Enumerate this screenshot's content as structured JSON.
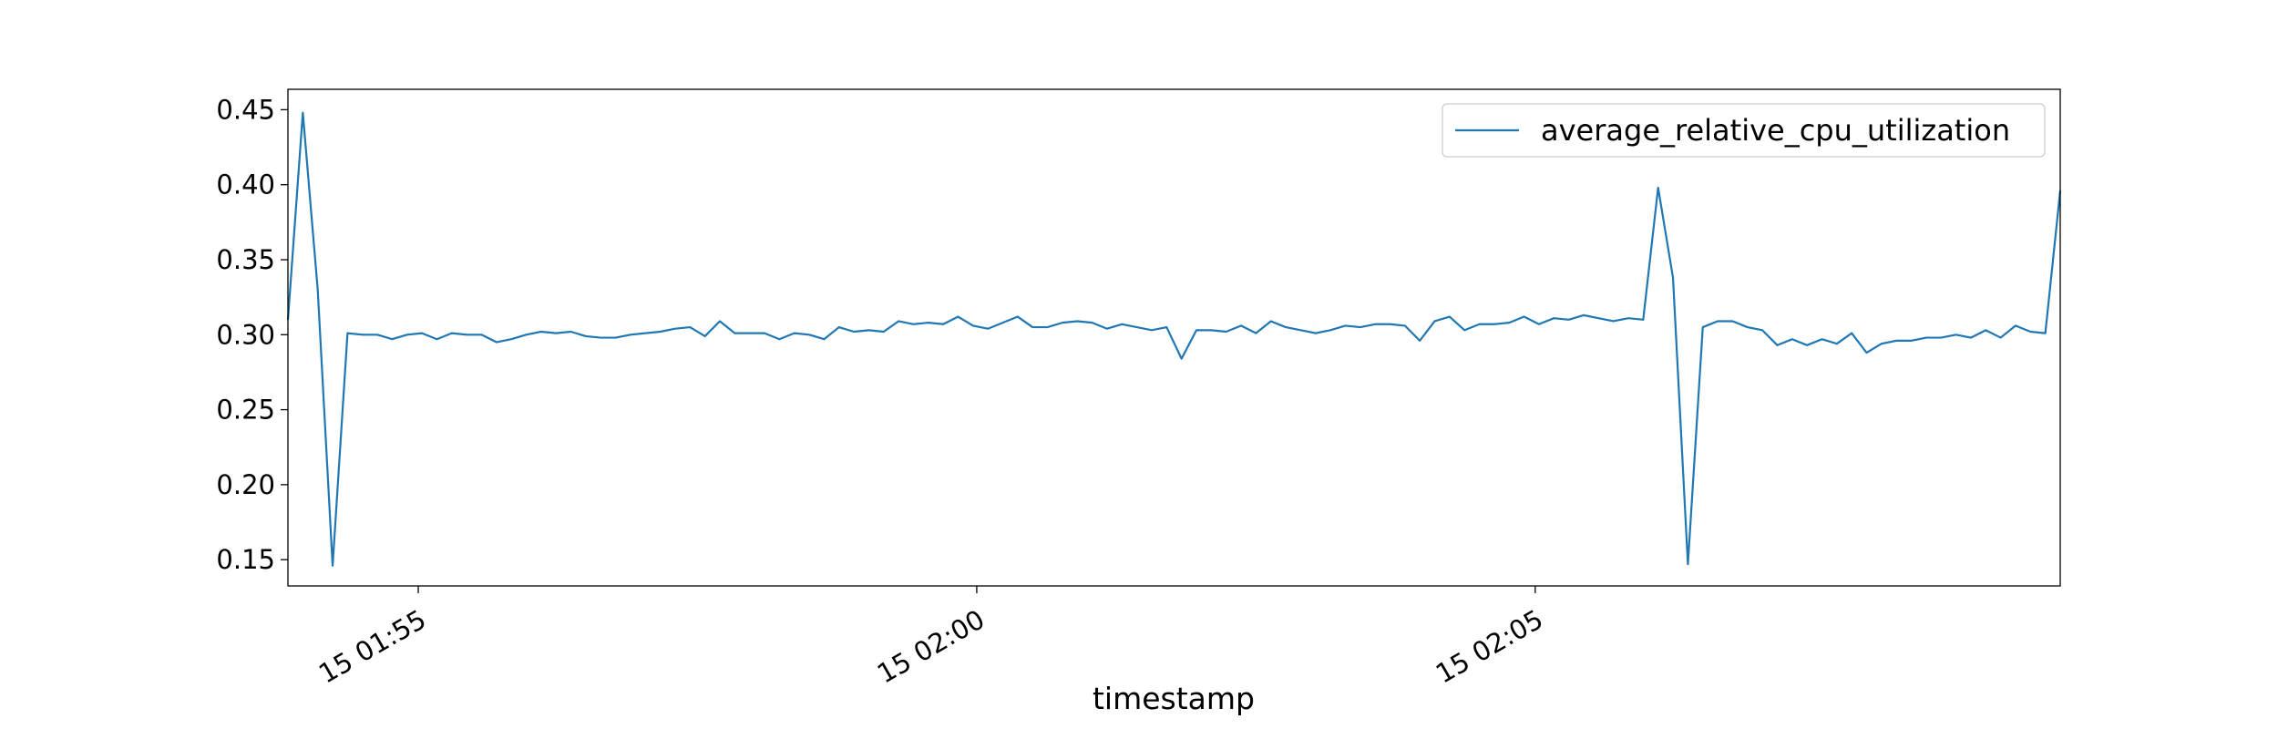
{
  "chart_data": {
    "type": "line",
    "x_label": "timestamp",
    "x": [
      "01:53:50",
      "01:53:58",
      "01:54:06",
      "01:54:14",
      "01:54:22",
      "01:54:30",
      "01:54:38",
      "01:54:46",
      "01:54:54",
      "01:55:02",
      "01:55:10",
      "01:55:18",
      "01:55:26",
      "01:55:34",
      "01:55:42",
      "01:55:50",
      "01:55:58",
      "01:56:06",
      "01:56:14",
      "01:56:22",
      "01:56:30",
      "01:56:38",
      "01:56:46",
      "01:56:54",
      "01:57:02",
      "01:57:10",
      "01:57:18",
      "01:57:26",
      "01:57:34",
      "01:57:42",
      "01:57:50",
      "01:57:58",
      "01:58:06",
      "01:58:14",
      "01:58:22",
      "01:58:30",
      "01:58:38",
      "01:58:46",
      "01:58:54",
      "01:59:02",
      "01:59:10",
      "01:59:18",
      "01:59:26",
      "01:59:34",
      "01:59:42",
      "01:59:50",
      "01:59:58",
      "02:00:06",
      "02:00:14",
      "02:00:22",
      "02:00:30",
      "02:00:38",
      "02:00:46",
      "02:00:54",
      "02:01:02",
      "02:01:10",
      "02:01:18",
      "02:01:26",
      "02:01:34",
      "02:01:42",
      "02:01:50",
      "02:01:58",
      "02:02:06",
      "02:02:14",
      "02:02:22",
      "02:02:30",
      "02:02:38",
      "02:02:46",
      "02:02:54",
      "02:03:02",
      "02:03:10",
      "02:03:18",
      "02:03:26",
      "02:03:34",
      "02:03:42",
      "02:03:50",
      "02:03:58",
      "02:04:06",
      "02:04:14",
      "02:04:22",
      "02:04:30",
      "02:04:38",
      "02:04:46",
      "02:04:54",
      "02:05:02",
      "02:05:10",
      "02:05:18",
      "02:05:26",
      "02:05:34",
      "02:05:42",
      "02:05:50",
      "02:05:58",
      "02:06:06",
      "02:06:14",
      "02:06:22",
      "02:06:30",
      "02:06:38",
      "02:06:46",
      "02:06:54",
      "02:07:02",
      "02:07:10",
      "02:07:18",
      "02:07:26",
      "02:07:34",
      "02:07:42",
      "02:07:50",
      "02:07:58",
      "02:08:06",
      "02:08:14",
      "02:08:22",
      "02:08:30",
      "02:08:38",
      "02:08:46",
      "02:08:54",
      "02:09:02",
      "02:09:10",
      "02:09:18",
      "02:09:26",
      "02:09:34",
      "02:09:42"
    ],
    "series": [
      {
        "name": "average_relative_cpu_utilization",
        "color": "#1f77b4",
        "values": [
          0.31,
          0.448,
          0.33,
          0.146,
          0.301,
          0.3,
          0.3,
          0.297,
          0.3,
          0.301,
          0.297,
          0.301,
          0.3,
          0.3,
          0.295,
          0.297,
          0.3,
          0.302,
          0.301,
          0.302,
          0.299,
          0.298,
          0.298,
          0.3,
          0.301,
          0.302,
          0.304,
          0.305,
          0.299,
          0.309,
          0.301,
          0.301,
          0.301,
          0.297,
          0.301,
          0.3,
          0.297,
          0.305,
          0.302,
          0.303,
          0.302,
          0.309,
          0.307,
          0.308,
          0.307,
          0.312,
          0.306,
          0.304,
          0.308,
          0.312,
          0.305,
          0.305,
          0.308,
          0.309,
          0.308,
          0.304,
          0.307,
          0.305,
          0.303,
          0.305,
          0.284,
          0.303,
          0.303,
          0.302,
          0.306,
          0.301,
          0.309,
          0.305,
          0.303,
          0.301,
          0.303,
          0.306,
          0.305,
          0.307,
          0.307,
          0.306,
          0.296,
          0.309,
          0.312,
          0.303,
          0.307,
          0.307,
          0.308,
          0.312,
          0.307,
          0.311,
          0.31,
          0.313,
          0.311,
          0.309,
          0.311,
          0.31,
          0.398,
          0.338,
          0.147,
          0.305,
          0.309,
          0.309,
          0.305,
          0.303,
          0.293,
          0.297,
          0.293,
          0.297,
          0.294,
          0.301,
          0.288,
          0.294,
          0.296,
          0.296,
          0.298,
          0.298,
          0.3,
          0.298,
          0.303,
          0.298,
          0.306,
          0.302,
          0.301,
          0.396
        ]
      }
    ],
    "xlim": [
      "01:53:50",
      "02:09:42"
    ],
    "xticks": [
      {
        "value": "01:55:00",
        "label": "15 01:55"
      },
      {
        "value": "02:00:00",
        "label": "15 02:00"
      },
      {
        "value": "02:05:00",
        "label": "15 02:05"
      }
    ],
    "ylim": [
      0.1325,
      0.4636
    ],
    "yticks": [
      0.15,
      {
        "value": 0.2,
        "label": "0.20"
      },
      0.25,
      {
        "value": 0.3,
        "label": "0.30"
      },
      0.35,
      {
        "value": 0.4,
        "label": "0.40"
      },
      0.45
    ],
    "legend": "upper right",
    "grid": false
  }
}
